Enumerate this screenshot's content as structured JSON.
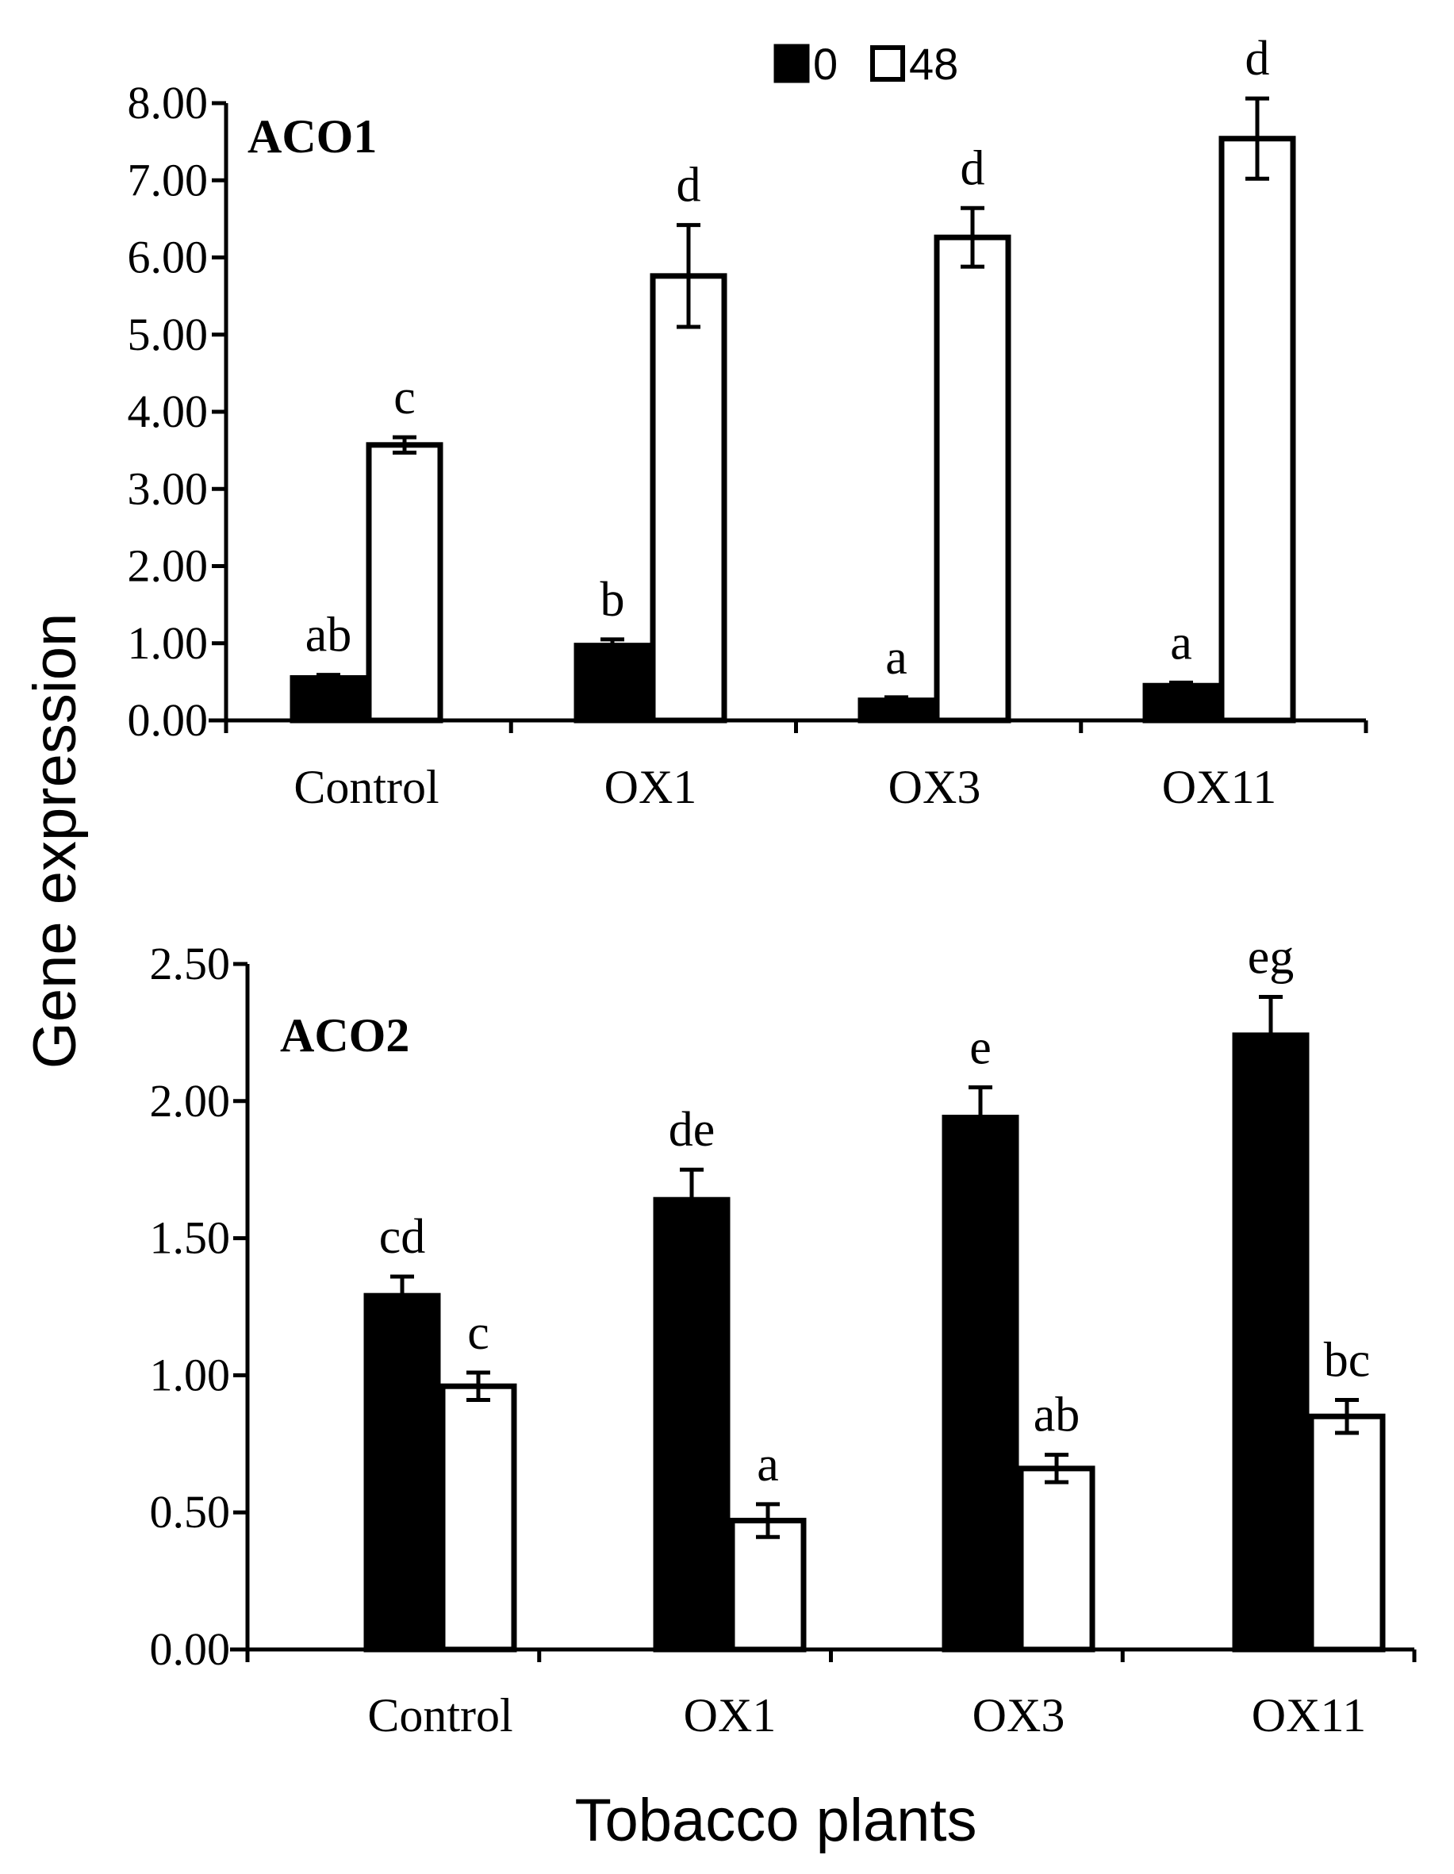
{
  "axis_titles": {
    "y": "Gene expression",
    "x": "Tobacco plants"
  },
  "legend": {
    "items": [
      {
        "label": "0",
        "fill": "#000000"
      },
      {
        "label": "48",
        "fill": "#ffffff"
      }
    ]
  },
  "colors": {
    "series_0": "#000000",
    "series_48": "#ffffff",
    "axis": "#000000"
  },
  "chart_data": [
    {
      "type": "bar",
      "title": "ACO1",
      "xlabel": "Tobacco plants",
      "ylabel": "Gene expression",
      "ylim": [
        0,
        8
      ],
      "ytick_labels": [
        "0.00",
        "1.00",
        "2.00",
        "3.00",
        "4.00",
        "5.00",
        "6.00",
        "7.00",
        "8.00"
      ],
      "categories": [
        "Control",
        "OX1",
        "OX3",
        "OX11"
      ],
      "series": [
        {
          "name": "0",
          "values": [
            0.55,
            0.97,
            0.26,
            0.45
          ],
          "errors": [
            0.04,
            0.08,
            0.04,
            0.04
          ],
          "letters": [
            "ab",
            "b",
            "a",
            "a"
          ]
        },
        {
          "name": "48",
          "values": [
            3.57,
            5.76,
            6.26,
            7.54
          ],
          "errors": [
            0.1,
            0.66,
            0.38,
            0.52
          ],
          "letters": [
            "c",
            "d",
            "d",
            "d"
          ]
        }
      ]
    },
    {
      "type": "bar",
      "title": "ACO2",
      "xlabel": "Tobacco plants",
      "ylabel": "Gene expression",
      "ylim": [
        0,
        2.5
      ],
      "ytick_labels": [
        "0.00",
        "0.50",
        "1.00",
        "1.50",
        "2.00",
        "2.50"
      ],
      "categories": [
        "Control",
        "OX1",
        "OX3",
        "OX11"
      ],
      "series": [
        {
          "name": "0",
          "values": [
            1.29,
            1.64,
            1.94,
            2.24
          ],
          "errors": [
            0.07,
            0.11,
            0.11,
            0.14
          ],
          "letters": [
            "cd",
            "de",
            "e",
            "eg"
          ]
        },
        {
          "name": "48",
          "values": [
            0.96,
            0.47,
            0.66,
            0.85
          ],
          "errors": [
            0.05,
            0.06,
            0.05,
            0.06
          ],
          "letters": [
            "c",
            "a",
            "ab",
            "bc"
          ]
        }
      ]
    }
  ]
}
